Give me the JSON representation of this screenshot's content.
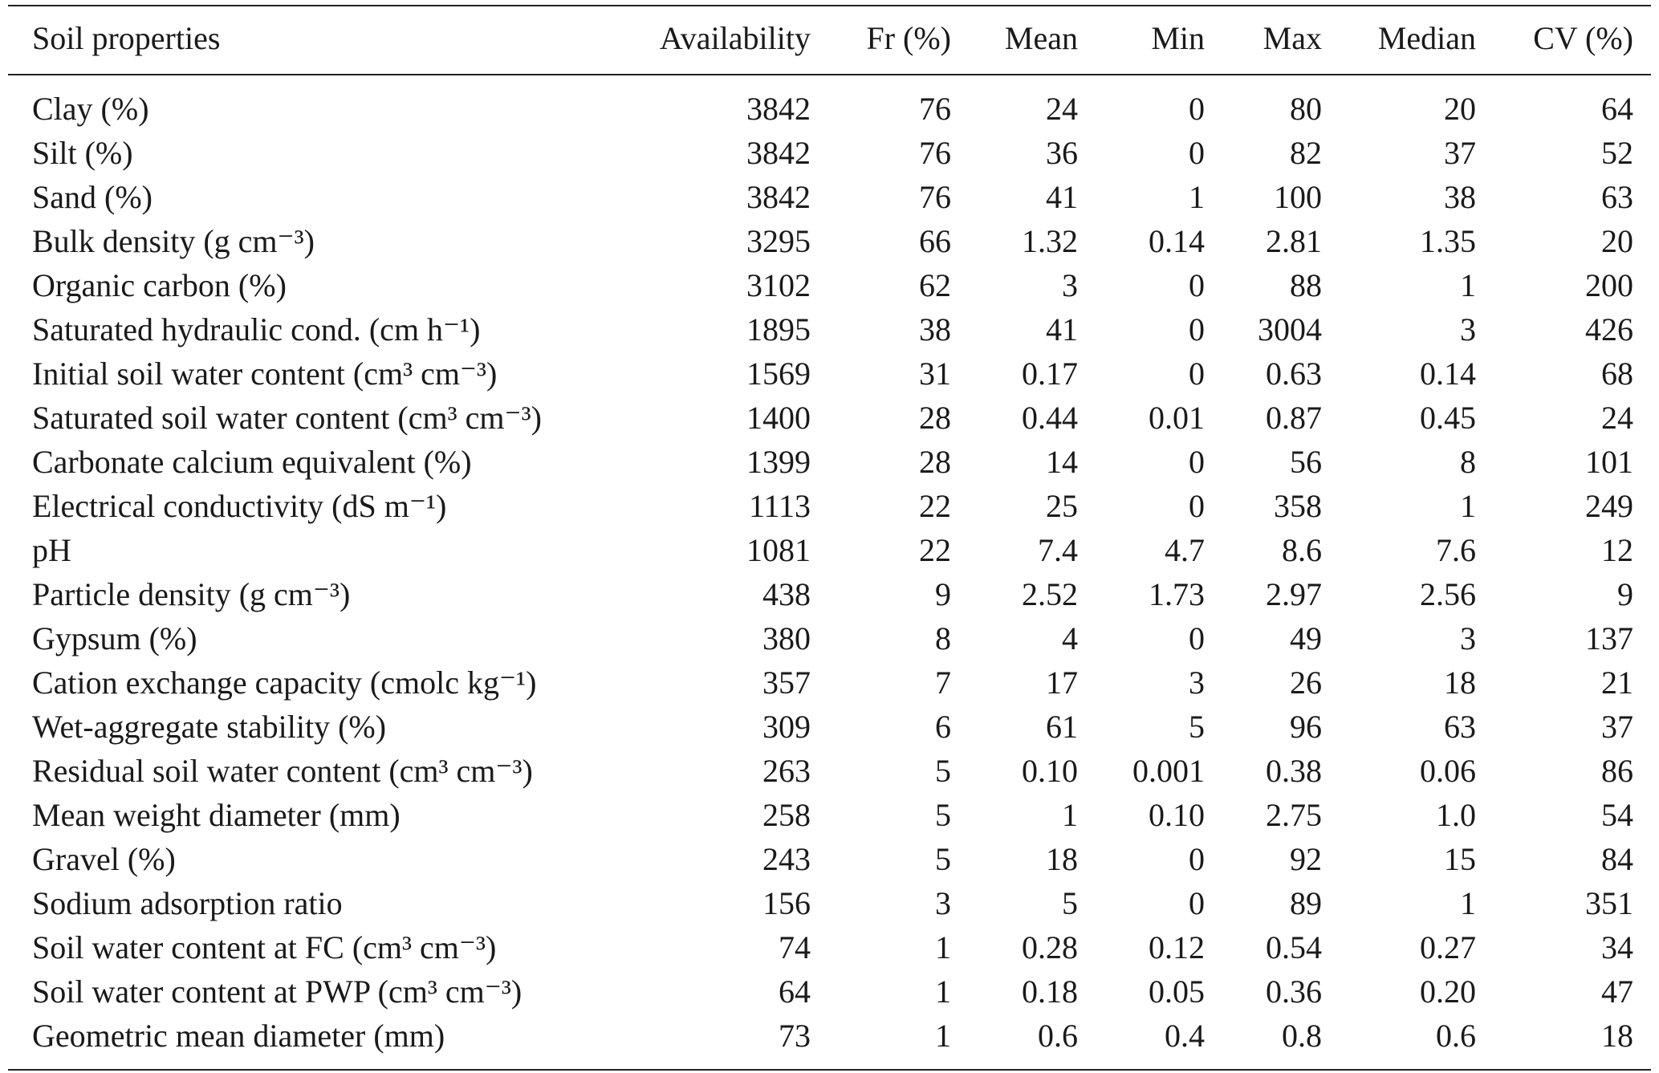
{
  "table": {
    "columns": [
      "Soil properties",
      "Availability",
      "Fr (%)",
      "Mean",
      "Min",
      "Max",
      "Median",
      "CV (%)"
    ],
    "rows": [
      {
        "property": "Clay (%)",
        "availability": "3842",
        "fr": "76",
        "mean": "24",
        "min": "0",
        "max": "80",
        "median": "20",
        "cv": "64"
      },
      {
        "property": "Silt (%)",
        "availability": "3842",
        "fr": "76",
        "mean": "36",
        "min": "0",
        "max": "82",
        "median": "37",
        "cv": "52"
      },
      {
        "property": "Sand (%)",
        "availability": "3842",
        "fr": "76",
        "mean": "41",
        "min": "1",
        "max": "100",
        "median": "38",
        "cv": "63"
      },
      {
        "property": "Bulk density (g cm⁻³)",
        "availability": "3295",
        "fr": "66",
        "mean": "1.32",
        "min": "0.14",
        "max": "2.81",
        "median": "1.35",
        "cv": "20"
      },
      {
        "property": "Organic carbon (%)",
        "availability": "3102",
        "fr": "62",
        "mean": "3",
        "min": "0",
        "max": "88",
        "median": "1",
        "cv": "200"
      },
      {
        "property": "Saturated hydraulic cond. (cm h⁻¹)",
        "availability": "1895",
        "fr": "38",
        "mean": "41",
        "min": "0",
        "max": "3004",
        "median": "3",
        "cv": "426"
      },
      {
        "property": "Initial soil water content (cm³ cm⁻³)",
        "availability": "1569",
        "fr": "31",
        "mean": "0.17",
        "min": "0",
        "max": "0.63",
        "median": "0.14",
        "cv": "68"
      },
      {
        "property": "Saturated soil water content (cm³ cm⁻³)",
        "availability": "1400",
        "fr": "28",
        "mean": "0.44",
        "min": "0.01",
        "max": "0.87",
        "median": "0.45",
        "cv": "24"
      },
      {
        "property": "Carbonate calcium equivalent (%)",
        "availability": "1399",
        "fr": "28",
        "mean": "14",
        "min": "0",
        "max": "56",
        "median": "8",
        "cv": "101"
      },
      {
        "property": "Electrical conductivity (dS m⁻¹)",
        "availability": "1113",
        "fr": "22",
        "mean": "25",
        "min": "0",
        "max": "358",
        "median": "1",
        "cv": "249"
      },
      {
        "property": "pH",
        "availability": "1081",
        "fr": "22",
        "mean": "7.4",
        "min": "4.7",
        "max": "8.6",
        "median": "7.6",
        "cv": "12"
      },
      {
        "property": "Particle density (g cm⁻³)",
        "availability": "438",
        "fr": "9",
        "mean": "2.52",
        "min": "1.73",
        "max": "2.97",
        "median": "2.56",
        "cv": "9"
      },
      {
        "property": "Gypsum (%)",
        "availability": "380",
        "fr": "8",
        "mean": "4",
        "min": "0",
        "max": "49",
        "median": "3",
        "cv": "137"
      },
      {
        "property": "Cation exchange capacity (cmolc kg⁻¹)",
        "availability": "357",
        "fr": "7",
        "mean": "17",
        "min": "3",
        "max": "26",
        "median": "18",
        "cv": "21"
      },
      {
        "property": "Wet-aggregate stability (%)",
        "availability": "309",
        "fr": "6",
        "mean": "61",
        "min": "5",
        "max": "96",
        "median": "63",
        "cv": "37"
      },
      {
        "property": "Residual soil water content (cm³ cm⁻³)",
        "availability": "263",
        "fr": "5",
        "mean": "0.10",
        "min": "0.001",
        "max": "0.38",
        "median": "0.06",
        "cv": "86"
      },
      {
        "property": "Mean weight diameter (mm)",
        "availability": "258",
        "fr": "5",
        "mean": "1",
        "min": "0.10",
        "max": "2.75",
        "median": "1.0",
        "cv": "54"
      },
      {
        "property": "Gravel (%)",
        "availability": "243",
        "fr": "5",
        "mean": "18",
        "min": "0",
        "max": "92",
        "median": "15",
        "cv": "84"
      },
      {
        "property": "Sodium adsorption ratio",
        "availability": "156",
        "fr": "3",
        "mean": "5",
        "min": "0",
        "max": "89",
        "median": "1",
        "cv": "351"
      },
      {
        "property": "Soil water content at FC (cm³ cm⁻³)",
        "availability": "74",
        "fr": "1",
        "mean": "0.28",
        "min": "0.12",
        "max": "0.54",
        "median": "0.27",
        "cv": "34"
      },
      {
        "property": "Soil water content at PWP (cm³ cm⁻³)",
        "availability": "64",
        "fr": "1",
        "mean": "0.18",
        "min": "0.05",
        "max": "0.36",
        "median": "0.20",
        "cv": "47"
      },
      {
        "property": "Geometric mean diameter (mm)",
        "availability": "73",
        "fr": "1",
        "mean": "0.6",
        "min": "0.4",
        "max": "0.8",
        "median": "0.6",
        "cv": "18"
      }
    ]
  }
}
